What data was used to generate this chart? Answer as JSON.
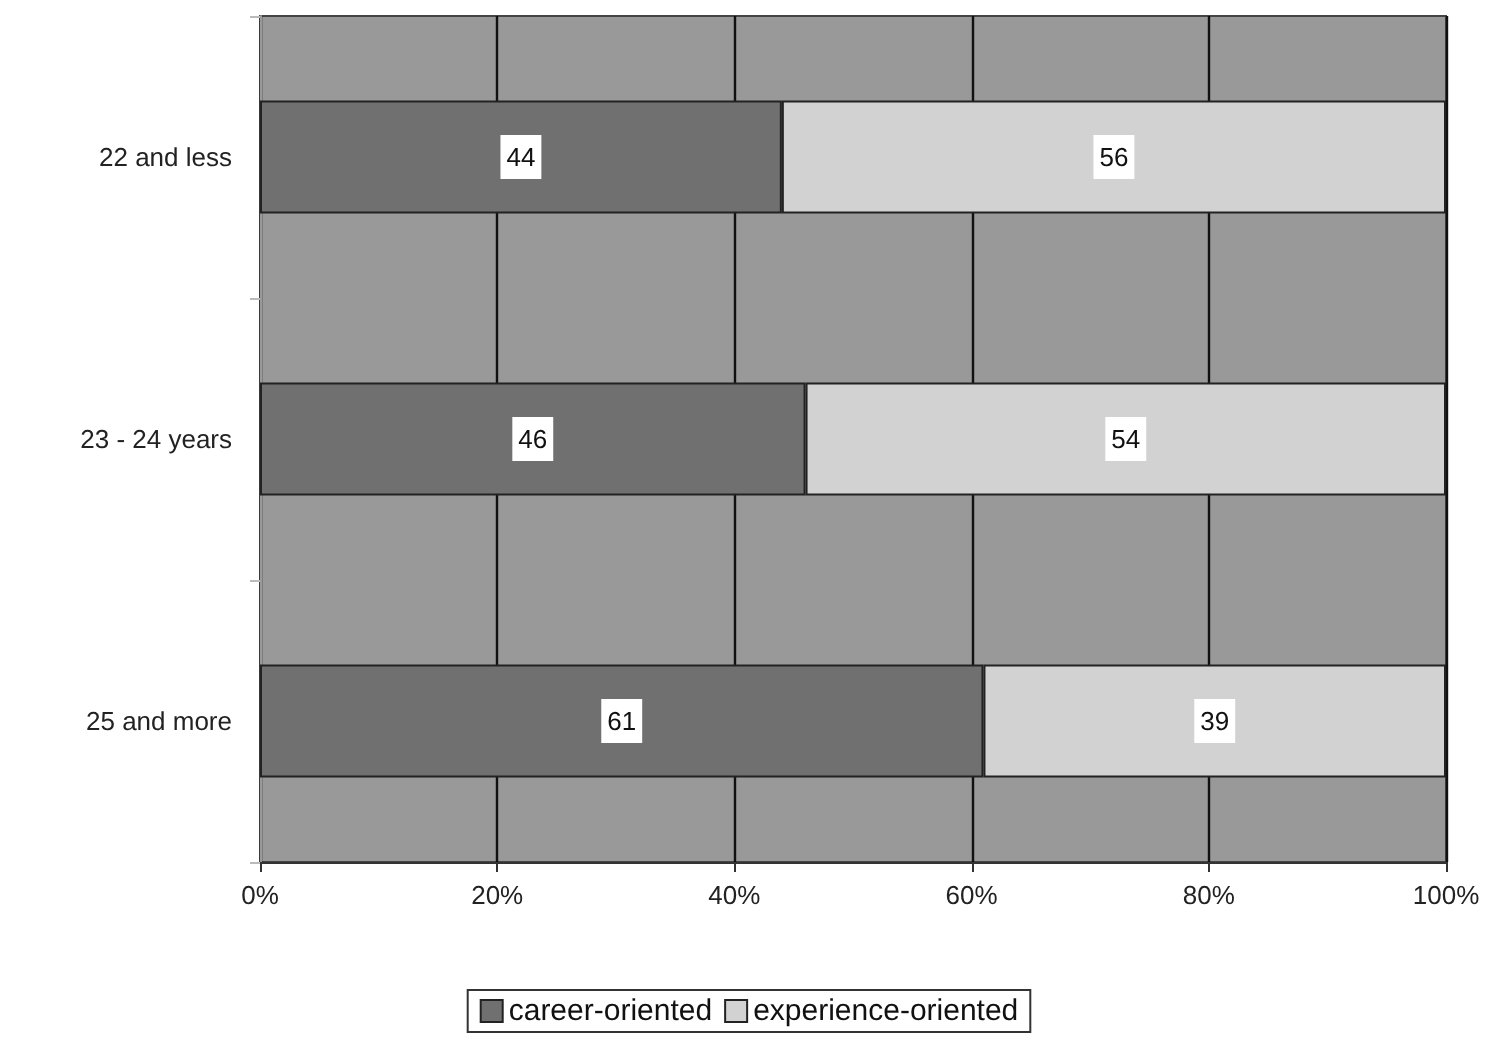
{
  "chart_data": {
    "type": "bar",
    "orientation": "horizontal",
    "stacked": true,
    "categories": [
      "22 and less",
      "23 - 24 years",
      "25 and more"
    ],
    "series": [
      {
        "name": "career-oriented",
        "color": "#707070",
        "values": [
          44,
          46,
          61
        ]
      },
      {
        "name": "experience-oriented",
        "color": "#d2d2d2",
        "values": [
          56,
          54,
          39
        ]
      }
    ],
    "xlim": [
      0,
      100
    ],
    "xticks": [
      {
        "value": 0,
        "label": "0%"
      },
      {
        "value": 20,
        "label": "20%"
      },
      {
        "value": 40,
        "label": "40%"
      },
      {
        "value": 60,
        "label": "60%"
      },
      {
        "value": 80,
        "label": "80%"
      },
      {
        "value": 100,
        "label": "100%"
      }
    ],
    "grid": "x",
    "legend": "bottom",
    "data_labels": true
  }
}
